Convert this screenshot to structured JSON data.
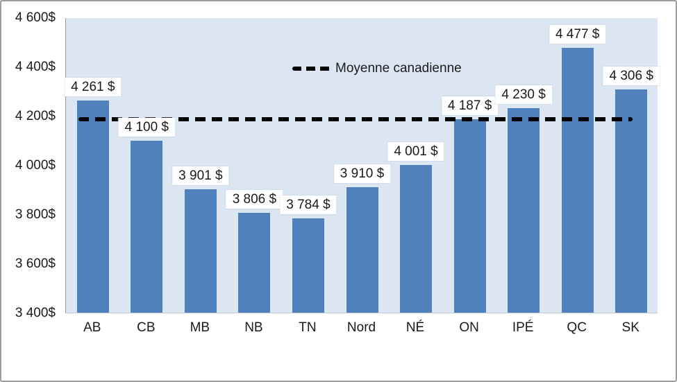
{
  "chart_data": {
    "type": "bar",
    "title": "",
    "xlabel": "",
    "ylabel": "",
    "categories": [
      "AB",
      "CB",
      "MB",
      "NB",
      "TN",
      "Nord",
      "NÉ",
      "ON",
      "IPÉ",
      "QC",
      "SK"
    ],
    "values": [
      4261,
      4100,
      3901,
      3806,
      3784,
      3910,
      4001,
      4187,
      4230,
      4477,
      4306
    ],
    "bar_labels": [
      "4 261 $",
      "4 100 $",
      "3 901 $",
      "3 806 $",
      "3 784 $",
      "3 910 $",
      "4 001 $",
      "4 187 $",
      "4 230 $",
      "4 477 $",
      "4 306 $"
    ],
    "ylim": [
      3400,
      4600
    ],
    "y_ticks": [
      {
        "value": 4600,
        "label": "4 600$"
      },
      {
        "value": 4400,
        "label": "4 400$"
      },
      {
        "value": 4200,
        "label": "4 200$"
      },
      {
        "value": 4000,
        "label": "4 000$"
      },
      {
        "value": 3800,
        "label": "3 800$"
      },
      {
        "value": 3600,
        "label": "3 600$"
      },
      {
        "value": 3400,
        "label": "3 400$"
      }
    ],
    "grid": false,
    "reference_line": {
      "value": 4190,
      "label": "Moyenne canadienne",
      "style": "dashed",
      "color": "#000000"
    },
    "legend": {
      "position": "inside-top-center",
      "entries": [
        {
          "label": "Moyenne canadienne",
          "marker": "dashed-line",
          "color": "#000000"
        }
      ]
    },
    "colors": {
      "bar": "#4f81bd",
      "plot_background": "#dce6f2",
      "label_background": "#ffffff",
      "text": "#1a1a1a",
      "frame_border": "#9b9b9b",
      "reference_line": "#000000"
    }
  }
}
